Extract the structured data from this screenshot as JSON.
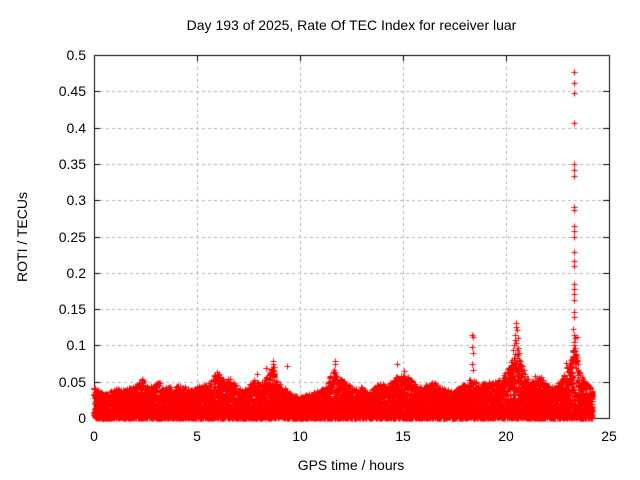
{
  "chart_data": {
    "type": "scatter",
    "title": "Day 193 of 2025, Rate Of TEC Index for receiver luar",
    "xlabel": "GPS time / hours",
    "ylabel": "ROTI / TECUs",
    "xlim": [
      0,
      25
    ],
    "ylim": [
      0,
      0.5
    ],
    "xticks": [
      {
        "v": 0,
        "label": "0"
      },
      {
        "v": 5,
        "label": "5"
      },
      {
        "v": 10,
        "label": "10"
      },
      {
        "v": 15,
        "label": "15"
      },
      {
        "v": 20,
        "label": "20"
      },
      {
        "v": 25,
        "label": "25"
      }
    ],
    "yticks": [
      {
        "v": 0,
        "label": "0"
      },
      {
        "v": 0.05,
        "label": "0.05"
      },
      {
        "v": 0.1,
        "label": "0.1"
      },
      {
        "v": 0.15,
        "label": "0.15"
      },
      {
        "v": 0.2,
        "label": "0.2"
      },
      {
        "v": 0.25,
        "label": "0.25"
      },
      {
        "v": 0.3,
        "label": "0.3"
      },
      {
        "v": 0.35,
        "label": "0.35"
      },
      {
        "v": 0.4,
        "label": "0.4"
      },
      {
        "v": 0.45,
        "label": "0.45"
      },
      {
        "v": 0.5,
        "label": "0.5"
      }
    ],
    "grid": {
      "show": true,
      "style": "dashed",
      "color": "#b4b4b4"
    },
    "marker": {
      "shape": "plus",
      "color": "#ff0000",
      "size": 7
    },
    "background_color": "#ffffff",
    "border_color": "#000000",
    "time_range_hours": [
      0,
      24.2
    ],
    "band_envelope": [
      [
        0,
        0.044
      ],
      [
        0.3,
        0.036
      ],
      [
        0.6,
        0.033
      ],
      [
        0.9,
        0.038
      ],
      [
        1.2,
        0.041
      ],
      [
        1.5,
        0.038
      ],
      [
        1.8,
        0.043
      ],
      [
        2.1,
        0.049
      ],
      [
        2.35,
        0.053
      ],
      [
        2.6,
        0.043
      ],
      [
        2.9,
        0.046
      ],
      [
        3.2,
        0.05
      ],
      [
        3.5,
        0.044
      ],
      [
        3.8,
        0.042
      ],
      [
        4.1,
        0.045
      ],
      [
        4.4,
        0.043
      ],
      [
        4.7,
        0.039
      ],
      [
        5,
        0.043
      ],
      [
        5.3,
        0.046
      ],
      [
        5.6,
        0.049
      ],
      [
        5.9,
        0.062
      ],
      [
        6.15,
        0.058
      ],
      [
        6.4,
        0.05
      ],
      [
        6.6,
        0.057
      ],
      [
        6.9,
        0.046
      ],
      [
        7.2,
        0.038
      ],
      [
        7.5,
        0.044
      ],
      [
        7.8,
        0.055
      ],
      [
        8.1,
        0.048
      ],
      [
        8.4,
        0.058
      ],
      [
        8.65,
        0.072
      ],
      [
        8.9,
        0.05
      ],
      [
        9.2,
        0.044
      ],
      [
        9.5,
        0.034
      ],
      [
        9.8,
        0.03
      ],
      [
        10.1,
        0.029
      ],
      [
        10.4,
        0.033
      ],
      [
        10.7,
        0.036
      ],
      [
        11,
        0.039
      ],
      [
        11.3,
        0.045
      ],
      [
        11.6,
        0.068
      ],
      [
        11.8,
        0.062
      ],
      [
        12.1,
        0.052
      ],
      [
        12.4,
        0.045
      ],
      [
        12.7,
        0.04
      ],
      [
        13,
        0.043
      ],
      [
        13.3,
        0.038
      ],
      [
        13.6,
        0.042
      ],
      [
        13.9,
        0.049
      ],
      [
        14.2,
        0.046
      ],
      [
        14.5,
        0.052
      ],
      [
        14.8,
        0.06
      ],
      [
        15.1,
        0.062
      ],
      [
        15.35,
        0.055
      ],
      [
        15.6,
        0.046
      ],
      [
        15.9,
        0.042
      ],
      [
        16.2,
        0.047
      ],
      [
        16.5,
        0.049
      ],
      [
        16.8,
        0.042
      ],
      [
        17.1,
        0.039
      ],
      [
        17.4,
        0.037
      ],
      [
        17.7,
        0.042
      ],
      [
        18,
        0.046
      ],
      [
        18.3,
        0.055
      ],
      [
        18.6,
        0.047
      ],
      [
        18.9,
        0.049
      ],
      [
        19.2,
        0.051
      ],
      [
        19.5,
        0.05
      ],
      [
        19.8,
        0.056
      ],
      [
        20.1,
        0.068
      ],
      [
        20.35,
        0.085
      ],
      [
        20.5,
        0.095
      ],
      [
        20.7,
        0.08
      ],
      [
        20.95,
        0.058
      ],
      [
        21.2,
        0.05
      ],
      [
        21.45,
        0.053
      ],
      [
        21.7,
        0.06
      ],
      [
        21.95,
        0.046
      ],
      [
        22.2,
        0.043
      ],
      [
        22.45,
        0.048
      ],
      [
        22.7,
        0.055
      ],
      [
        22.95,
        0.068
      ],
      [
        23.15,
        0.08
      ],
      [
        23.3,
        0.1
      ],
      [
        23.45,
        0.085
      ],
      [
        23.6,
        0.06
      ],
      [
        23.8,
        0.052
      ],
      [
        24,
        0.046
      ],
      [
        24.2,
        0.038
      ]
    ],
    "outliers": [
      [
        2.35,
        0.054
      ],
      [
        5.95,
        0.063
      ],
      [
        6.05,
        0.06
      ],
      [
        7.9,
        0.06
      ],
      [
        8.35,
        0.069
      ],
      [
        8.68,
        0.079
      ],
      [
        8.7,
        0.075
      ],
      [
        8.72,
        0.07
      ],
      [
        9.35,
        0.072
      ],
      [
        11.68,
        0.079
      ],
      [
        11.72,
        0.075
      ],
      [
        14.72,
        0.074
      ],
      [
        15.05,
        0.065
      ],
      [
        18.35,
        0.115
      ],
      [
        18.38,
        0.111
      ],
      [
        18.36,
        0.098
      ],
      [
        18.4,
        0.09
      ],
      [
        18.37,
        0.075
      ],
      [
        18.42,
        0.066
      ],
      [
        20.5,
        0.131
      ],
      [
        20.47,
        0.126
      ],
      [
        20.53,
        0.121
      ],
      [
        20.42,
        0.115
      ],
      [
        20.57,
        0.11
      ],
      [
        20.45,
        0.107
      ],
      [
        20.5,
        0.103
      ],
      [
        20.38,
        0.1
      ],
      [
        20.6,
        0.097
      ],
      [
        20.35,
        0.093
      ],
      [
        20.62,
        0.09
      ],
      [
        21.4,
        0.058
      ],
      [
        22.9,
        0.076
      ],
      [
        22.95,
        0.07
      ],
      [
        23.28,
        0.476
      ],
      [
        23.3,
        0.461
      ],
      [
        23.31,
        0.447
      ],
      [
        23.29,
        0.406
      ],
      [
        23.28,
        0.35
      ],
      [
        23.3,
        0.341
      ],
      [
        23.32,
        0.333
      ],
      [
        23.29,
        0.291
      ],
      [
        23.31,
        0.286
      ],
      [
        23.28,
        0.264
      ],
      [
        23.3,
        0.257
      ],
      [
        23.32,
        0.25
      ],
      [
        23.28,
        0.228
      ],
      [
        23.3,
        0.216
      ],
      [
        23.31,
        0.209
      ],
      [
        23.28,
        0.185
      ],
      [
        23.3,
        0.178
      ],
      [
        23.32,
        0.171
      ],
      [
        23.29,
        0.162
      ],
      [
        23.3,
        0.146
      ],
      [
        23.31,
        0.139
      ],
      [
        23.27,
        0.122
      ],
      [
        23.3,
        0.115
      ],
      [
        23.33,
        0.11
      ],
      [
        23.45,
        0.112
      ],
      [
        23.28,
        0.105
      ],
      [
        23.31,
        0.1
      ],
      [
        23.34,
        0.096
      ],
      [
        23.26,
        0.092
      ]
    ]
  }
}
